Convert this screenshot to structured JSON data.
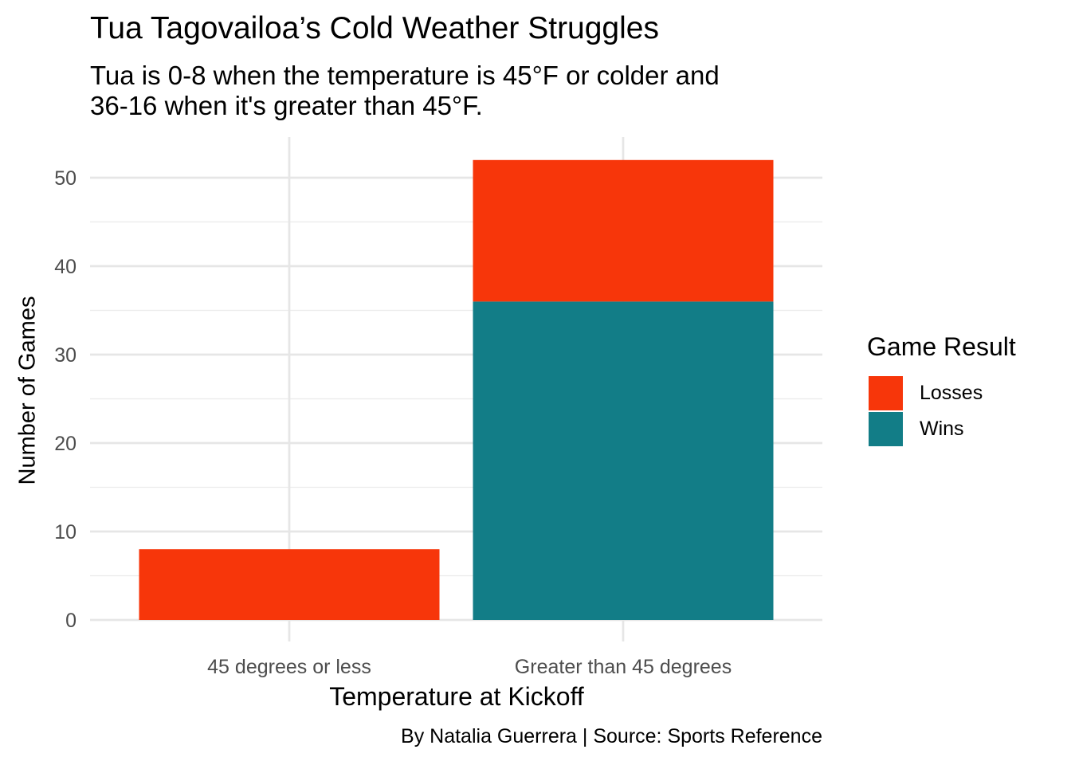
{
  "chart_data": {
    "type": "bar",
    "stacked": true,
    "title": "Tua Tagovailoa’s Cold Weather Struggles",
    "subtitle": "Tua is 0-8 when the temperature is 45°F or colder and\n36-16 when it's greater than 45°F.",
    "xlabel": "Temperature at Kickoff",
    "ylabel": "Number of Games",
    "caption": "By Natalia Guerrera | Source: Sports Reference",
    "categories": [
      "45 degrees or less",
      "Greater than 45 degrees"
    ],
    "series": [
      {
        "name": "Wins",
        "color": "#127D87",
        "values": [
          0,
          36
        ]
      },
      {
        "name": "Losses",
        "color": "#F7360A",
        "values": [
          8,
          16
        ]
      }
    ],
    "ylim": [
      0,
      54
    ],
    "yticks": [
      0,
      10,
      20,
      30,
      40,
      50
    ],
    "ytick_labels": [
      "0",
      "10",
      "20",
      "30",
      "40",
      "50"
    ],
    "grid": true,
    "legend": {
      "title": "Game Result",
      "position": "right",
      "entries": [
        {
          "label": "Losses",
          "color": "#F7360A"
        },
        {
          "label": "Wins",
          "color": "#127D87"
        }
      ]
    }
  }
}
